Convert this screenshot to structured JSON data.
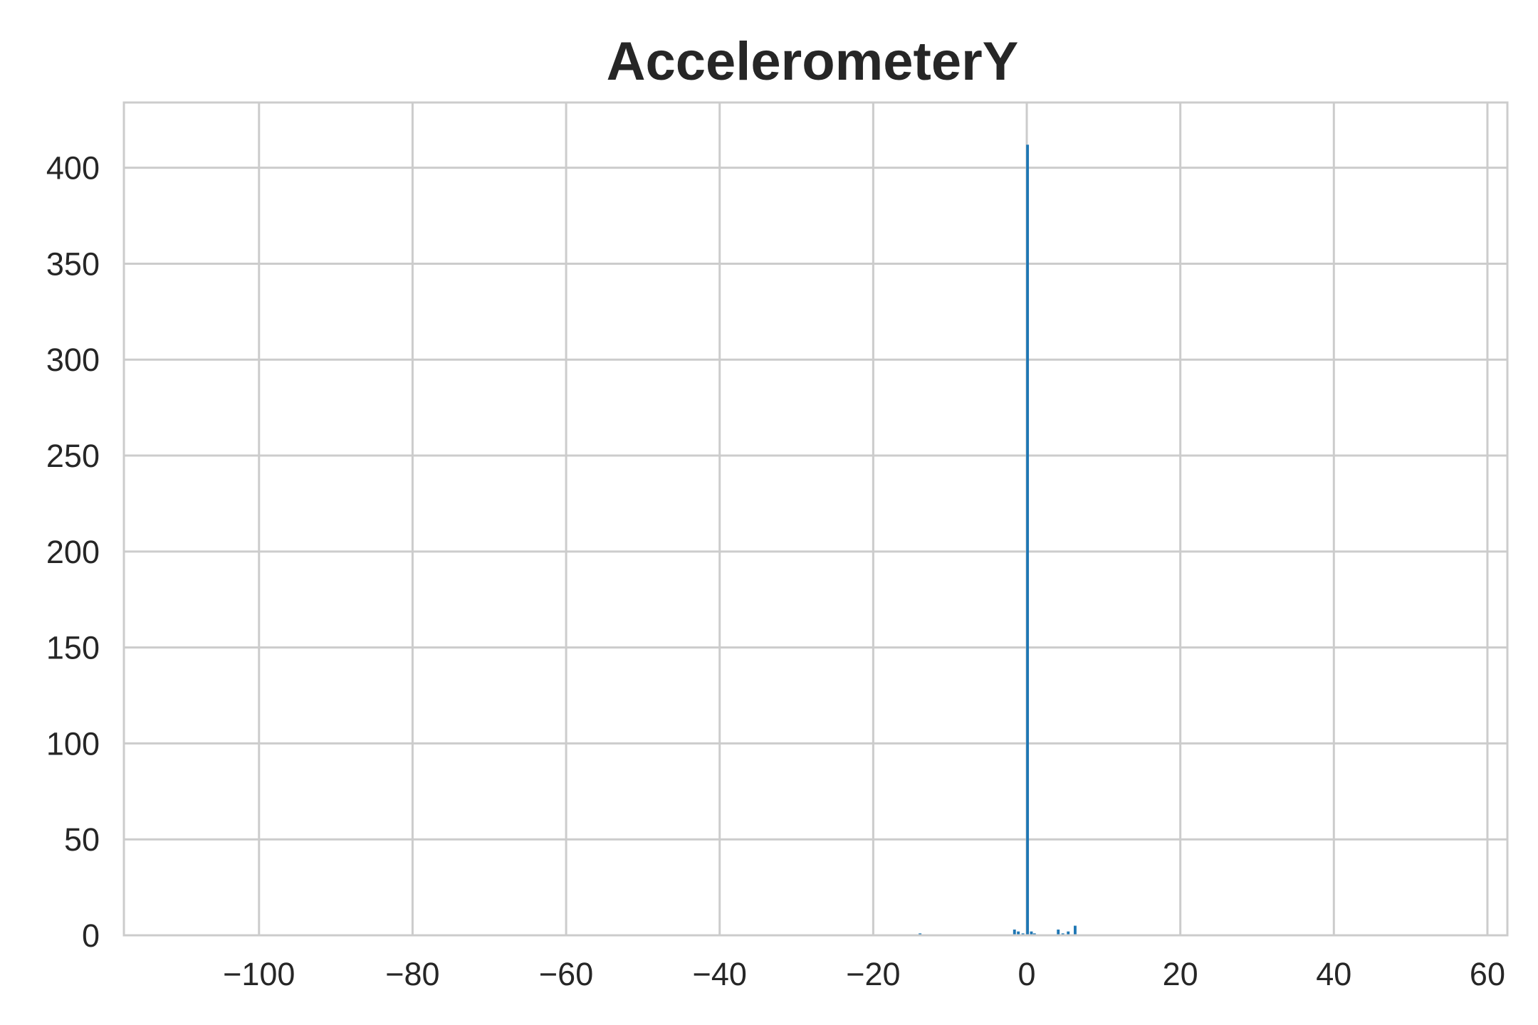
{
  "chart_data": {
    "type": "bar",
    "title": "AccelerometerY",
    "xlabel": "",
    "ylabel": "",
    "xlim": [
      -117.6,
      62.6
    ],
    "ylim": [
      0,
      434
    ],
    "xticks": [
      -100,
      -80,
      -60,
      -40,
      -20,
      0,
      20,
      40,
      60
    ],
    "xtick_labels": [
      "−100",
      "−80",
      "−60",
      "−40",
      "−20",
      "0",
      "20",
      "40",
      "60"
    ],
    "yticks": [
      0,
      50,
      100,
      150,
      200,
      250,
      300,
      350,
      400
    ],
    "ytick_labels": [
      "0",
      "50",
      "100",
      "150",
      "200",
      "250",
      "300",
      "350",
      "400"
    ],
    "grid": true,
    "bar_color": "#1f77b4",
    "bin_width": 0.36,
    "series": [
      {
        "x": [
          -13.9,
          -1.6,
          -1.1,
          -0.5,
          0.1,
          0.6,
          1.0,
          4.1,
          4.7,
          5.4,
          6.3
        ],
        "values": [
          1,
          3,
          2,
          1,
          412,
          2,
          1,
          3,
          1,
          2,
          5
        ]
      }
    ]
  }
}
